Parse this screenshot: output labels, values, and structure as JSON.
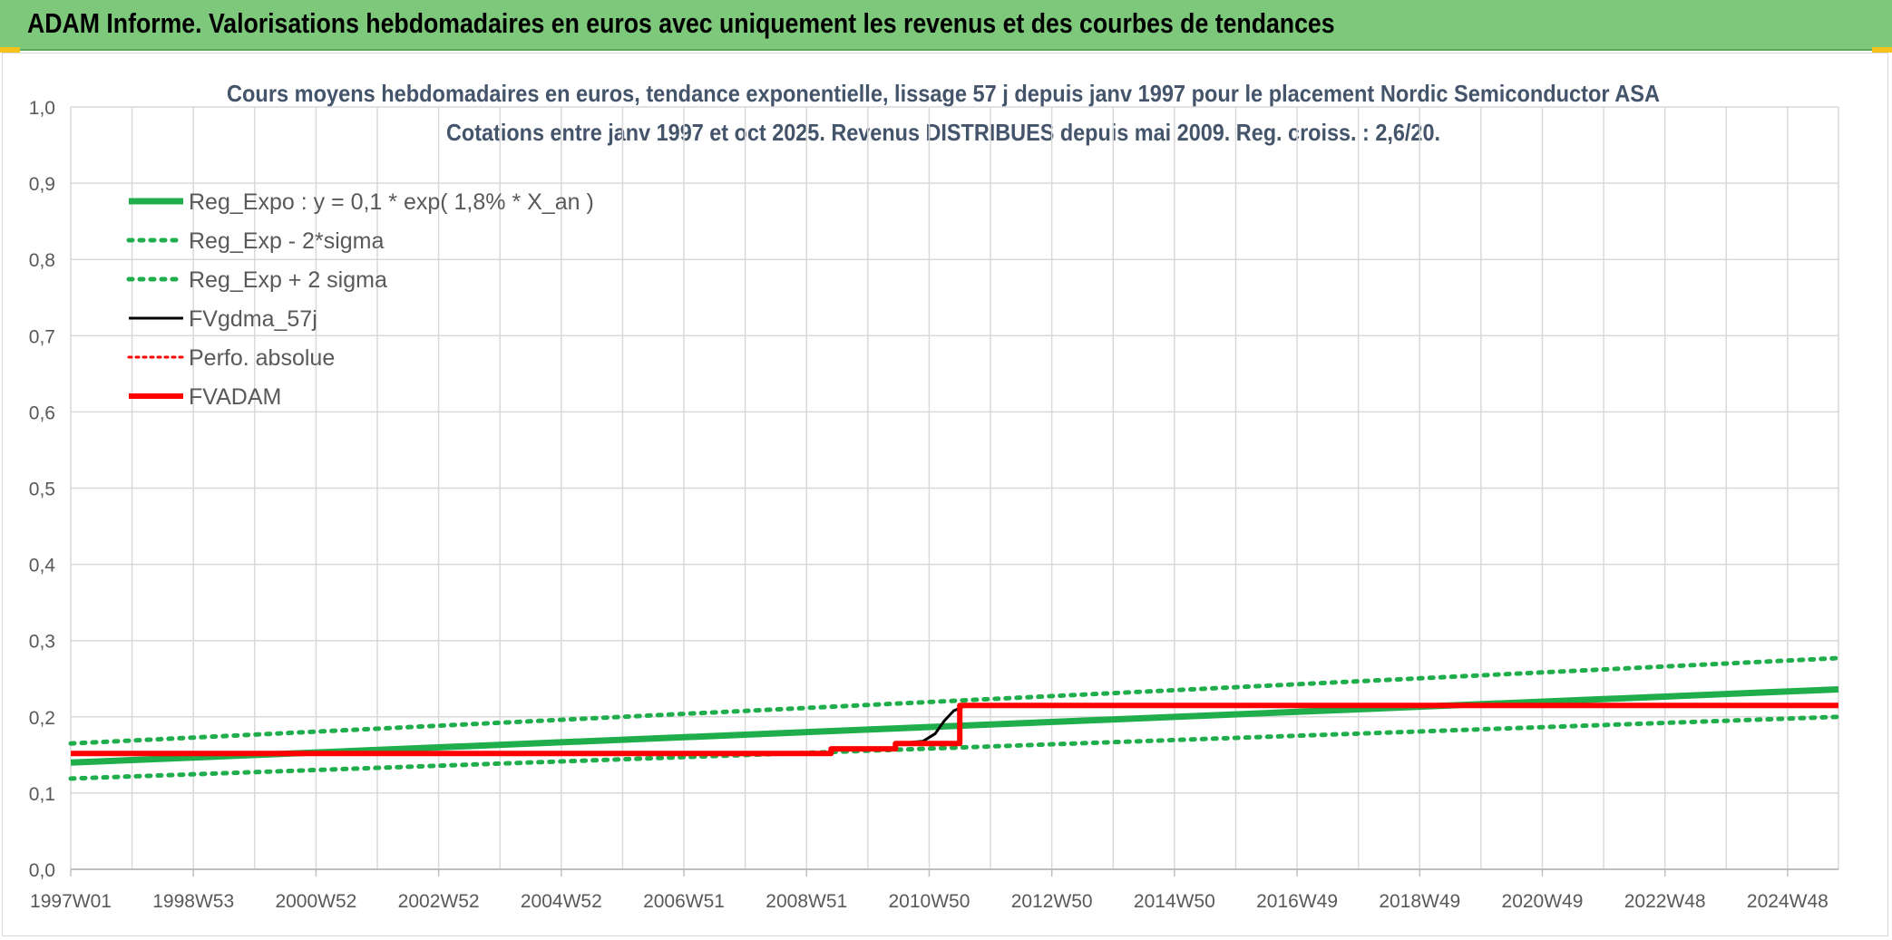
{
  "header": {
    "title": "ADAM Informe. Valorisations hebdomadaires en euros avec uniquement les revenus et des courbes de tendances"
  },
  "colors": {
    "header_bg": "#7dc87a",
    "reg_green": "#1fae4b",
    "red": "#ff0000",
    "black": "#000000",
    "grid": "#d9d9d9",
    "axis_text": "#595959",
    "title_text": "#44546a"
  },
  "chart_data": {
    "type": "line",
    "title": "Cours moyens hebdomadaires en euros, tendance exponentielle, lissage 57 j depuis janv 1997 pour le placement Nordic Semiconductor ASA",
    "subtitle": "Cotations entre janv 1997 et oct 2025. Revenus DISTRIBUES depuis mai 2009. Reg. croiss. : 2,6/20.",
    "xlabel": "",
    "ylabel": "",
    "ylim": [
      0,
      1.0
    ],
    "xlim": [
      1997.0,
      2025.83
    ],
    "grid": true,
    "legend_position": "top-left",
    "y_ticks": [
      "0,0",
      "0,1",
      "0,2",
      "0,3",
      "0,4",
      "0,5",
      "0,6",
      "0,7",
      "0,8",
      "0,9",
      "1,0"
    ],
    "x_ticks": [
      {
        "label": "1997W01",
        "x": 1997.0
      },
      {
        "label": "1998W53",
        "x": 1999.0
      },
      {
        "label": "2000W52",
        "x": 2001.0
      },
      {
        "label": "2002W52",
        "x": 2003.0
      },
      {
        "label": "2004W52",
        "x": 2005.0
      },
      {
        "label": "2006W51",
        "x": 2007.0
      },
      {
        "label": "2008W51",
        "x": 2009.0
      },
      {
        "label": "2010W50",
        "x": 2011.0
      },
      {
        "label": "2012W50",
        "x": 2013.0
      },
      {
        "label": "2014W50",
        "x": 2015.0
      },
      {
        "label": "2016W49",
        "x": 2017.0
      },
      {
        "label": "2018W49",
        "x": 2019.0
      },
      {
        "label": "2020W49",
        "x": 2021.0
      },
      {
        "label": "2022W48",
        "x": 2023.0
      },
      {
        "label": "2024W48",
        "x": 2025.0
      }
    ],
    "series": [
      {
        "name": "Reg_Expo : y = 0,1 * exp( 1,8% *  X_an )",
        "style": "solid",
        "color": "#1fae4b",
        "width": 7,
        "x": [
          1997.0,
          2025.83
        ],
        "y": [
          0.14,
          0.236
        ]
      },
      {
        "name": "Reg_Exp - 2*sigma",
        "style": "dotted",
        "color": "#1fae4b",
        "width": 5,
        "x": [
          1997.0,
          2025.83
        ],
        "y": [
          0.119,
          0.2
        ]
      },
      {
        "name": "Reg_Exp + 2 sigma",
        "style": "dotted",
        "color": "#1fae4b",
        "width": 5,
        "x": [
          1997.0,
          2025.83
        ],
        "y": [
          0.165,
          0.277
        ]
      },
      {
        "name": "FVgdma_57j",
        "style": "solid",
        "color": "#000000",
        "width": 3,
        "x": [
          1997.0,
          2009.35,
          2009.45,
          2010.4,
          2010.5,
          2010.9,
          2011.1,
          2011.25,
          2011.4,
          2011.6,
          2025.83
        ],
        "y": [
          0.152,
          0.152,
          0.158,
          0.158,
          0.165,
          0.168,
          0.178,
          0.195,
          0.208,
          0.215,
          0.215
        ]
      },
      {
        "name": "Perfo. absolue",
        "style": "dotted",
        "color": "#ff0000",
        "width": 3,
        "x": [],
        "y": []
      },
      {
        "name": "FVADAM",
        "style": "solid",
        "color": "#ff0000",
        "width": 6,
        "x": [
          1997.0,
          2009.4,
          2009.4,
          2010.45,
          2010.45,
          2011.5,
          2011.5,
          2025.83
        ],
        "y": [
          0.152,
          0.152,
          0.158,
          0.158,
          0.165,
          0.165,
          0.215,
          0.215
        ]
      }
    ]
  }
}
